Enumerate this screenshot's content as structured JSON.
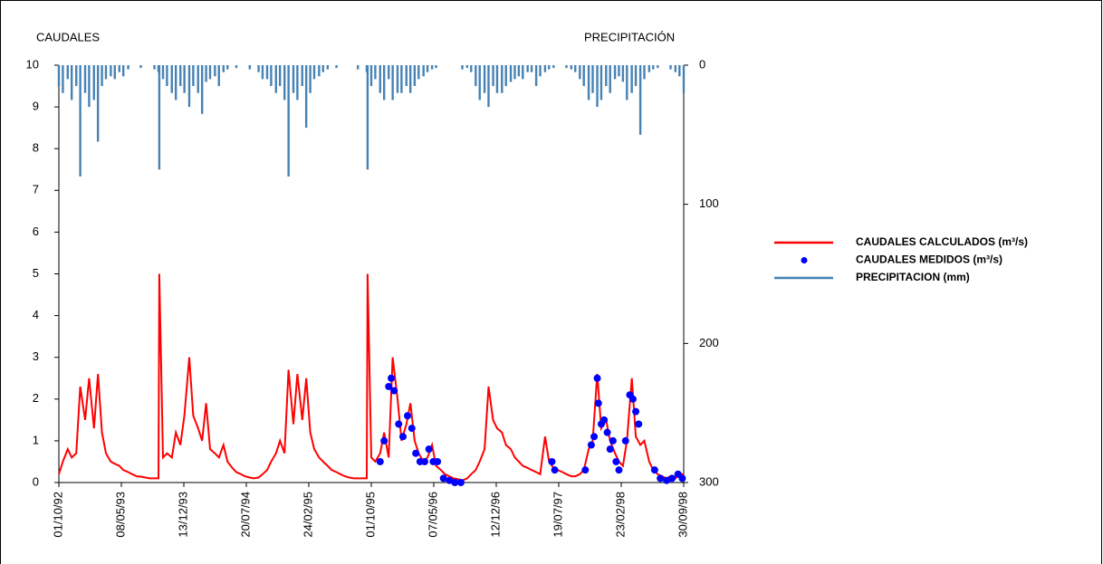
{
  "chart_data": {
    "type": "line",
    "y_label": "CAUDALES",
    "y2_label": "PRECIPITACIÓN",
    "x": [
      "01/10/92",
      "15/10/92",
      "01/11/92",
      "15/11/92",
      "01/12/92",
      "15/12/92",
      "01/01/93",
      "15/01/93",
      "01/02/93",
      "15/02/93",
      "01/03/93",
      "15/03/93",
      "01/04/93",
      "15/04/93",
      "01/05/93",
      "15/05/93",
      "01/06/93",
      "15/06/93",
      "01/07/93",
      "15/07/93",
      "01/08/93",
      "15/08/93",
      "01/09/93",
      "15/09/93",
      "18/09/93",
      "01/10/93",
      "15/10/93",
      "01/11/93",
      "15/11/93",
      "01/12/93",
      "15/12/93",
      "01/01/94",
      "15/01/94",
      "01/02/94",
      "15/02/94",
      "01/03/94",
      "15/03/94",
      "01/04/94",
      "15/04/94",
      "01/05/94",
      "15/05/94",
      "01/06/94",
      "15/06/94",
      "01/07/94",
      "15/07/94",
      "01/08/94",
      "15/08/94",
      "01/09/94",
      "15/09/94",
      "01/10/94",
      "15/10/94",
      "01/11/94",
      "15/11/94",
      "01/12/94",
      "15/12/94",
      "01/01/95",
      "15/01/95",
      "01/02/95",
      "15/02/95",
      "01/03/95",
      "15/03/95",
      "01/04/95",
      "15/04/95",
      "01/05/95",
      "15/05/95",
      "01/06/95",
      "15/06/95",
      "01/07/95",
      "15/07/95",
      "01/08/95",
      "15/08/95",
      "01/09/95",
      "15/09/95",
      "18/09/95",
      "01/10/95",
      "15/10/95",
      "01/11/95",
      "15/11/95",
      "01/12/95",
      "15/12/95",
      "01/01/96",
      "15/01/96",
      "01/02/96",
      "15/02/96",
      "01/03/96",
      "15/03/96",
      "01/04/96",
      "15/04/96",
      "01/05/96",
      "15/05/96",
      "01/06/96",
      "15/06/96",
      "01/07/96",
      "15/07/96",
      "01/08/96",
      "15/08/96",
      "01/09/96",
      "15/09/96",
      "01/10/96",
      "15/10/96",
      "01/11/96",
      "15/11/96",
      "01/12/96",
      "15/12/96",
      "01/01/97",
      "15/01/97",
      "01/02/97",
      "15/02/97",
      "01/03/97",
      "15/03/97",
      "01/04/97",
      "15/04/97",
      "01/05/97",
      "15/05/97",
      "01/06/97",
      "15/06/97",
      "01/07/97",
      "15/07/97",
      "01/08/97",
      "15/08/97",
      "01/09/97",
      "15/09/97",
      "01/10/97",
      "15/10/97",
      "01/11/97",
      "15/11/97",
      "01/12/97",
      "15/12/97",
      "01/01/98",
      "15/01/98",
      "01/02/98",
      "15/02/98",
      "01/03/98",
      "15/03/98",
      "01/04/98",
      "15/04/98",
      "01/05/98",
      "15/05/98",
      "01/06/98",
      "15/06/98",
      "01/07/98",
      "15/07/98",
      "01/08/98",
      "15/08/98",
      "01/09/98",
      "15/09/98",
      "30/09/98"
    ],
    "series": [
      {
        "name": "CAUDALES CALCULADOS (m³/s)",
        "type": "line",
        "color": "#ff0000",
        "values": [
          0.2,
          0.5,
          0.8,
          0.6,
          0.7,
          2.3,
          1.5,
          2.5,
          1.3,
          2.6,
          1.2,
          0.7,
          0.5,
          0.45,
          0.4,
          0.3,
          0.25,
          0.2,
          0.15,
          0.14,
          0.12,
          0.1,
          0.1,
          0.1,
          5.0,
          0.6,
          0.7,
          0.6,
          1.2,
          0.9,
          1.6,
          3.0,
          1.6,
          1.3,
          1.0,
          1.9,
          0.8,
          0.7,
          0.6,
          0.9,
          0.5,
          0.35,
          0.25,
          0.2,
          0.15,
          0.12,
          0.1,
          0.12,
          0.2,
          0.3,
          0.5,
          0.7,
          1.0,
          0.7,
          2.7,
          1.4,
          2.6,
          1.5,
          2.5,
          1.2,
          0.8,
          0.6,
          0.5,
          0.4,
          0.3,
          0.25,
          0.2,
          0.15,
          0.12,
          0.1,
          0.1,
          0.1,
          0.1,
          5.0,
          0.6,
          0.5,
          0.7,
          1.2,
          0.6,
          3.0,
          2.0,
          1.0,
          1.4,
          1.9,
          1.0,
          0.7,
          0.5,
          0.6,
          0.9,
          0.4,
          0.3,
          0.2,
          0.15,
          0.1,
          0.08,
          0.05,
          0.1,
          0.2,
          0.3,
          0.5,
          0.8,
          2.3,
          1.5,
          1.3,
          1.2,
          0.9,
          0.8,
          0.6,
          0.5,
          0.4,
          0.35,
          0.3,
          0.25,
          0.2,
          1.1,
          0.5,
          0.35,
          0.3,
          0.25,
          0.2,
          0.15,
          0.15,
          0.2,
          0.3,
          0.8,
          1.0,
          2.6,
          1.3,
          1.5,
          1.0,
          0.7,
          0.5,
          0.4,
          1.0,
          2.5,
          1.1,
          0.9,
          1.0,
          0.5,
          0.3,
          0.2,
          0.15,
          0.1,
          0.15,
          0.1,
          0.2,
          0.2
        ]
      },
      {
        "name": "CAUDALES MEDIDOS (m³/s)",
        "type": "scatter",
        "color": "#0000ff",
        "x": [
          "01/11/95",
          "15/11/95",
          "01/12/95",
          "10/12/95",
          "20/12/95",
          "05/01/96",
          "20/01/96",
          "05/02/96",
          "20/02/96",
          "05/03/96",
          "20/03/96",
          "05/04/96",
          "20/04/96",
          "05/05/96",
          "20/05/96",
          "10/06/96",
          "01/07/96",
          "20/07/96",
          "10/08/96",
          "25/06/97",
          "05/07/97",
          "20/10/97",
          "10/11/97",
          "20/11/97",
          "01/12/97",
          "05/12/97",
          "15/12/97",
          "25/12/97",
          "05/01/98",
          "15/01/98",
          "25/01/98",
          "05/02/98",
          "15/02/98",
          "10/03/98",
          "25/03/98",
          "05/04/98",
          "15/04/98",
          "25/04/98",
          "20/06/98",
          "10/07/98",
          "01/08/98",
          "20/08/98",
          "10/09/98",
          "25/09/98"
        ],
        "values": [
          0.5,
          1.0,
          2.3,
          2.5,
          2.2,
          1.4,
          1.1,
          1.6,
          1.3,
          0.7,
          0.5,
          0.5,
          0.8,
          0.5,
          0.5,
          0.1,
          0.05,
          0.0,
          0.0,
          0.5,
          0.3,
          0.3,
          0.9,
          1.1,
          2.5,
          1.9,
          1.4,
          1.5,
          1.2,
          0.8,
          1.0,
          0.5,
          0.3,
          1.0,
          2.1,
          2.0,
          1.7,
          1.4,
          0.3,
          0.1,
          0.05,
          0.1,
          0.2,
          0.1
        ]
      },
      {
        "name": "PRECIPITACION (mm)",
        "type": "bar",
        "axis": "y2",
        "color": "#4682b4",
        "values": [
          15,
          20,
          10,
          25,
          15,
          80,
          20,
          30,
          25,
          55,
          15,
          10,
          8,
          10,
          5,
          8,
          3,
          0,
          0,
          2,
          0,
          0,
          3,
          5,
          75,
          10,
          15,
          20,
          25,
          15,
          20,
          30,
          15,
          20,
          35,
          12,
          10,
          8,
          15,
          5,
          3,
          0,
          2,
          0,
          0,
          3,
          0,
          5,
          10,
          10,
          15,
          20,
          15,
          25,
          80,
          20,
          25,
          15,
          45,
          20,
          10,
          8,
          5,
          3,
          0,
          2,
          0,
          0,
          0,
          0,
          3,
          0,
          5,
          75,
          15,
          10,
          20,
          25,
          10,
          25,
          20,
          20,
          15,
          20,
          15,
          10,
          8,
          5,
          3,
          2,
          0,
          0,
          0,
          0,
          0,
          3,
          2,
          5,
          15,
          25,
          20,
          30,
          15,
          20,
          20,
          15,
          12,
          10,
          8,
          10,
          5,
          5,
          15,
          8,
          5,
          3,
          2,
          0,
          0,
          2,
          3,
          5,
          10,
          15,
          25,
          20,
          30,
          25,
          15,
          20,
          10,
          8,
          12,
          25,
          20,
          15,
          50,
          10,
          5,
          3,
          2,
          0,
          0,
          3,
          5,
          8,
          20
        ]
      }
    ],
    "xlim": [
      "01/10/92",
      "30/09/98"
    ],
    "xticks": [
      "01/10/92",
      "08/05/93",
      "13/12/93",
      "20/07/94",
      "24/02/95",
      "01/10/95",
      "07/05/96",
      "12/12/96",
      "19/07/97",
      "23/02/98",
      "30/09/98"
    ],
    "ylim": [
      0,
      10
    ],
    "yticks": [
      0,
      1,
      2,
      3,
      4,
      5,
      6,
      7,
      8,
      9,
      10
    ],
    "y2lim": [
      0,
      300
    ],
    "y2ticks": [
      0,
      100,
      200,
      300
    ],
    "y2_inverted": true
  }
}
